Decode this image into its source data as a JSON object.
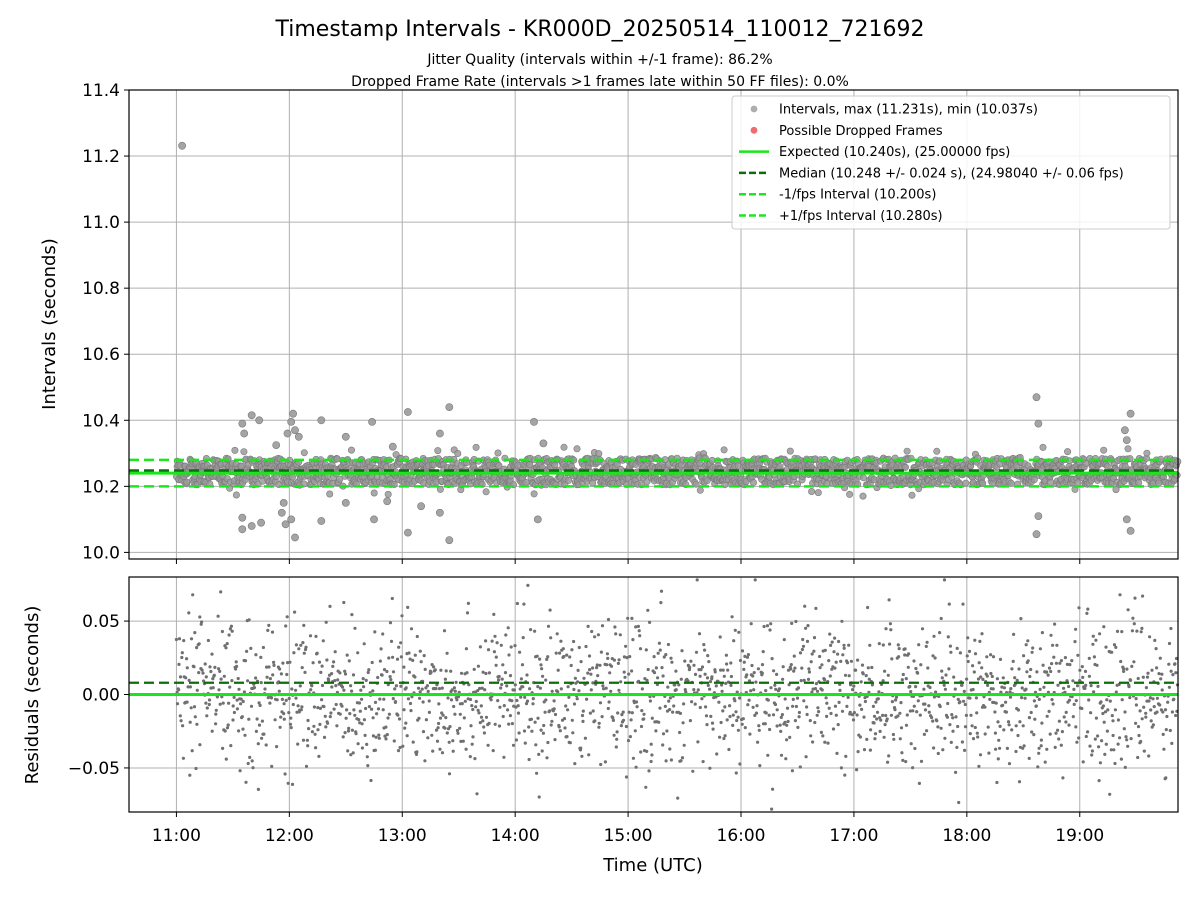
{
  "title": "Timestamp Intervals - KR000D_20250514_110012_721692",
  "subtitle_lines": [
    "Jitter Quality (intervals within +/-1 frame): 86.2%",
    "Dropped Frame Rate (intervals >1 frames late within 50 FF files): 0.0%"
  ],
  "colors": {
    "points": "#9a9a9a",
    "points_edge": "#7a7a7a",
    "residual_points": "#707070",
    "dropped": "#e8474a",
    "expected": "#19e619",
    "median": "#0a6e0a",
    "fps_band": "#1ee61e",
    "grid": "#b0b0b0"
  },
  "chart_data": [
    {
      "type": "scatter",
      "panel": "intervals",
      "xlabel": "",
      "ylabel": "Intervals (seconds)",
      "ylim": [
        9.98,
        11.4
      ],
      "yticks": [
        10.0,
        10.2,
        10.4,
        10.6,
        10.8,
        11.0,
        11.2,
        11.4
      ],
      "ytick_labels": [
        "10.0",
        "10.2",
        "10.4",
        "10.6",
        "10.8",
        "11.0",
        "11.2",
        "11.4"
      ],
      "xlim_hours": [
        10.58,
        19.87
      ],
      "grid": true,
      "legend_position": "top-right",
      "legend": [
        {
          "label": "Intervals, max (11.231s), min (10.037s)",
          "kind": "point",
          "color_key": "points"
        },
        {
          "label": "Possible Dropped Frames",
          "kind": "point",
          "color_key": "dropped"
        },
        {
          "label": "Expected (10.240s), (25.00000 fps)",
          "kind": "solid",
          "color_key": "expected"
        },
        {
          "label": "Median (10.248 +/- 0.024 s), (24.98040 +/- 0.06 fps)",
          "kind": "dashed",
          "color_key": "median"
        },
        {
          "label": "-1/fps Interval (10.200s)",
          "kind": "dashed",
          "color_key": "fps_band"
        },
        {
          "label": "+1/fps Interval (10.280s)",
          "kind": "dashed",
          "color_key": "fps_band"
        }
      ],
      "hlines": {
        "expected": 10.24,
        "median": 10.248,
        "minus_fps": 10.2,
        "plus_fps": 10.28
      },
      "series": [
        {
          "name": "Intervals, max (11.231s), min (10.037s)",
          "band": {
            "x_start": "11:00",
            "x_end": "19:52",
            "center": 10.245,
            "spread": 0.045,
            "count": 1900
          },
          "outliers": [
            {
              "x": "11:03",
              "y": 11.231
            },
            {
              "x": "11:35",
              "y": 10.39
            },
            {
              "x": "11:36",
              "y": 10.36
            },
            {
              "x": "11:40",
              "y": 10.415
            },
            {
              "x": "11:44",
              "y": 10.4
            },
            {
              "x": "11:35",
              "y": 10.105
            },
            {
              "x": "11:35",
              "y": 10.07
            },
            {
              "x": "11:40",
              "y": 10.08
            },
            {
              "x": "11:45",
              "y": 10.09
            },
            {
              "x": "11:53",
              "y": 10.325
            },
            {
              "x": "11:57",
              "y": 10.15
            },
            {
              "x": "11:56",
              "y": 10.12
            },
            {
              "x": "11:58",
              "y": 10.085
            },
            {
              "x": "11:59",
              "y": 10.36
            },
            {
              "x": "12:01",
              "y": 10.395
            },
            {
              "x": "12:02",
              "y": 10.42
            },
            {
              "x": "12:03",
              "y": 10.37
            },
            {
              "x": "12:05",
              "y": 10.35
            },
            {
              "x": "12:01",
              "y": 10.1
            },
            {
              "x": "12:03",
              "y": 10.045
            },
            {
              "x": "12:17",
              "y": 10.4
            },
            {
              "x": "12:17",
              "y": 10.095
            },
            {
              "x": "12:30",
              "y": 10.35
            },
            {
              "x": "12:30",
              "y": 10.15
            },
            {
              "x": "12:44",
              "y": 10.395
            },
            {
              "x": "12:45",
              "y": 10.1
            },
            {
              "x": "12:52",
              "y": 10.155
            },
            {
              "x": "12:55",
              "y": 10.32
            },
            {
              "x": "13:03",
              "y": 10.425
            },
            {
              "x": "13:03",
              "y": 10.06
            },
            {
              "x": "13:10",
              "y": 10.14
            },
            {
              "x": "13:20",
              "y": 10.36
            },
            {
              "x": "13:20",
              "y": 10.12
            },
            {
              "x": "13:25",
              "y": 10.44
            },
            {
              "x": "13:25",
              "y": 10.037
            },
            {
              "x": "14:10",
              "y": 10.395
            },
            {
              "x": "14:12",
              "y": 10.1
            },
            {
              "x": "14:15",
              "y": 10.33
            },
            {
              "x": "18:37",
              "y": 10.47
            },
            {
              "x": "18:38",
              "y": 10.39
            },
            {
              "x": "18:38",
              "y": 10.11
            },
            {
              "x": "18:37",
              "y": 10.055
            },
            {
              "x": "19:24",
              "y": 10.37
            },
            {
              "x": "19:25",
              "y": 10.34
            },
            {
              "x": "19:27",
              "y": 10.42
            },
            {
              "x": "19:25",
              "y": 10.1
            },
            {
              "x": "19:27",
              "y": 10.065
            }
          ]
        },
        {
          "name": "Possible Dropped Frames",
          "points": []
        }
      ]
    },
    {
      "type": "scatter",
      "panel": "residuals",
      "xlabel": "Time (UTC)",
      "ylabel": "Residuals (seconds)",
      "ylim": [
        -0.08,
        0.08
      ],
      "yticks": [
        -0.05,
        0.0,
        0.05
      ],
      "ytick_labels": [
        "−0.05",
        "0.00",
        "0.05"
      ],
      "xlim_hours": [
        10.58,
        19.87
      ],
      "xticks": [
        "11:00",
        "12:00",
        "13:00",
        "14:00",
        "15:00",
        "16:00",
        "17:00",
        "18:00",
        "19:00"
      ],
      "grid": true,
      "hlines": {
        "zero": 0.0,
        "median": 0.008
      },
      "series": [
        {
          "name": "Residuals",
          "band": {
            "x_start": "11:00",
            "x_end": "19:52",
            "center": 0.0,
            "spread": 0.025,
            "count": 1900,
            "min": -0.078,
            "max": 0.078
          }
        }
      ]
    }
  ]
}
